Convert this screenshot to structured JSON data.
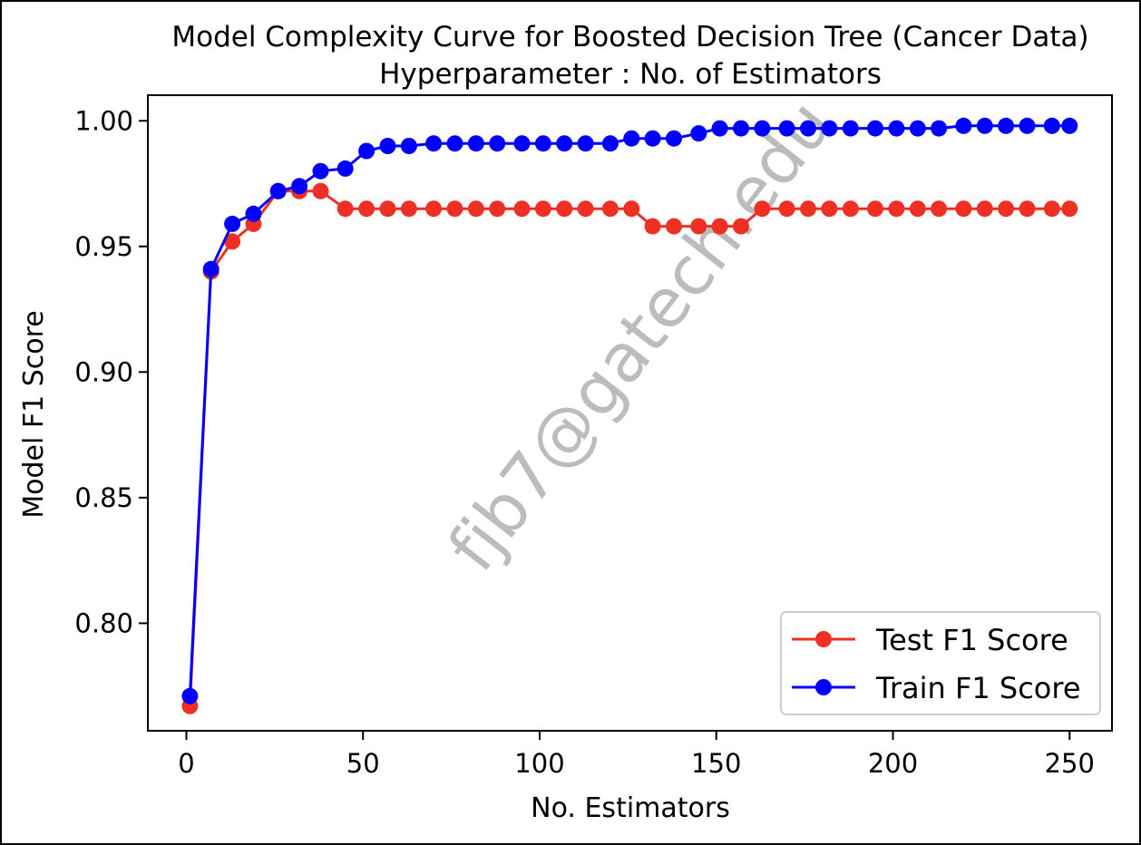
{
  "chart_data": {
    "type": "line",
    "title": "Model Complexity Curve for Boosted Decision Tree (Cancer Data)",
    "subtitle": "Hyperparameter : No. of Estimators",
    "xlabel": "No. Estimators",
    "ylabel": "Model F1 Score",
    "xlim": [
      -10.9,
      262
    ],
    "ylim": [
      0.7572,
      1.0102
    ],
    "xticks": [
      0,
      50,
      100,
      150,
      200,
      250
    ],
    "xtick_labels": [
      "0",
      "50",
      "100",
      "150",
      "200",
      "250"
    ],
    "yticks": [
      0.8,
      0.85,
      0.9,
      0.95,
      1.0
    ],
    "ytick_labels": [
      "0.80",
      "0.85",
      "0.90",
      "0.95",
      "1.00"
    ],
    "grid": false,
    "legend_position": "lower-right",
    "x": [
      1,
      7,
      13,
      19,
      26,
      32,
      38,
      45,
      51,
      57,
      63,
      70,
      76,
      82,
      88,
      95,
      101,
      107,
      113,
      120,
      126,
      132,
      138,
      145,
      151,
      157,
      163,
      170,
      176,
      182,
      188,
      195,
      201,
      207,
      213,
      220,
      226,
      232,
      238,
      245,
      250
    ],
    "series": [
      {
        "name": "Test F1 Score",
        "color": "#ee3024",
        "values": [
          0.767,
          0.94,
          0.952,
          0.959,
          0.972,
          0.972,
          0.972,
          0.965,
          0.965,
          0.965,
          0.965,
          0.965,
          0.965,
          0.965,
          0.965,
          0.965,
          0.965,
          0.965,
          0.965,
          0.965,
          0.965,
          0.958,
          0.958,
          0.958,
          0.958,
          0.958,
          0.965,
          0.965,
          0.965,
          0.965,
          0.965,
          0.965,
          0.965,
          0.965,
          0.965,
          0.965,
          0.965,
          0.965,
          0.965,
          0.965,
          0.965
        ]
      },
      {
        "name": "Train F1 Score",
        "color": "#0000ff",
        "values": [
          0.771,
          0.941,
          0.959,
          0.963,
          0.972,
          0.974,
          0.98,
          0.981,
          0.988,
          0.99,
          0.99,
          0.991,
          0.991,
          0.991,
          0.991,
          0.991,
          0.991,
          0.991,
          0.991,
          0.991,
          0.993,
          0.993,
          0.993,
          0.995,
          0.997,
          0.997,
          0.997,
          0.997,
          0.997,
          0.997,
          0.997,
          0.997,
          0.997,
          0.997,
          0.997,
          0.998,
          0.998,
          0.998,
          0.998,
          0.998,
          0.998
        ]
      }
    ]
  },
  "watermark": "fjb7@gatech.edu"
}
